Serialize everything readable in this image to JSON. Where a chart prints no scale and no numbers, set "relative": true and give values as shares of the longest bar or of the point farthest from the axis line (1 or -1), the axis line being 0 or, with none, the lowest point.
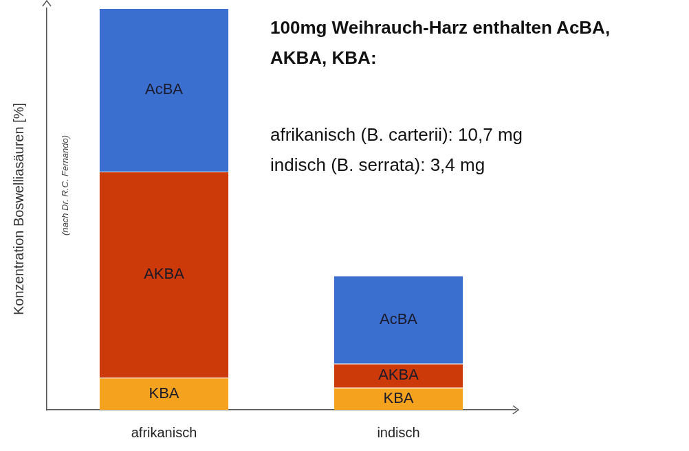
{
  "chart_data": {
    "type": "bar",
    "title": "100mg Weihrauch-Harz enthalten AcBA, AKBA, KBA:",
    "ylabel": "Konzentration Boswelliasäuren [%]",
    "annotations": [
      "(nach Dr. R.C. Fernando)",
      "afrikanisch (B. carterii): 10,7 mg",
      "indisch (B. serrata): 3,4 mg"
    ],
    "categories": [
      "afrikanisch",
      "indisch"
    ],
    "stacked": true,
    "relative": true,
    "series": [
      {
        "name": "KBA",
        "color": "#f5a21e",
        "values": [
          0.08,
          0.055
        ]
      },
      {
        "name": "AKBA",
        "color": "#cc3a0a",
        "values": [
          0.513,
          0.06
        ]
      },
      {
        "name": "AcBA",
        "color": "#3a6fd0",
        "values": [
          0.407,
          0.219
        ]
      }
    ]
  }
}
